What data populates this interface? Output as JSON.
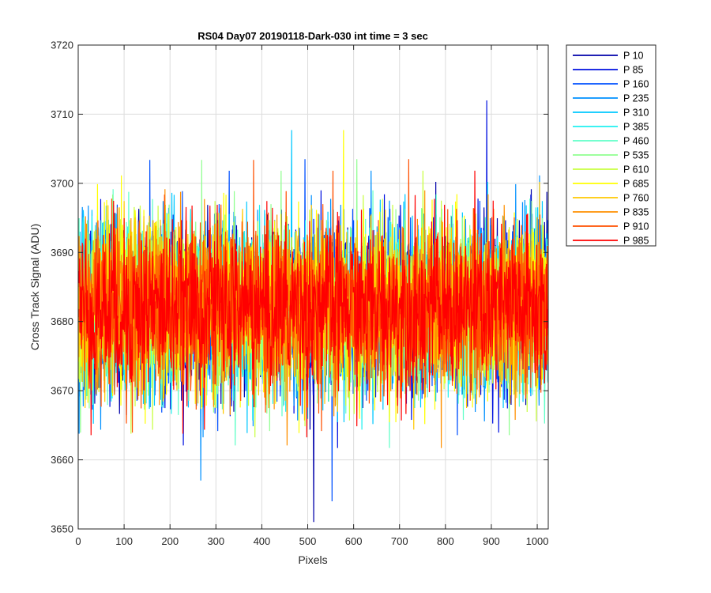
{
  "chart_data": {
    "type": "line",
    "title": "RS04 Day07 20190118-Dark-030 int time = 3 sec",
    "xlabel": "Pixels",
    "ylabel": "Cross Track Signal (ADU)",
    "xlim": [
      0,
      1024
    ],
    "ylim": [
      3650,
      3720
    ],
    "x_ticks": [
      "0",
      "100",
      "200",
      "300",
      "400",
      "500",
      "600",
      "700",
      "800",
      "900",
      "1000"
    ],
    "y_ticks": [
      "3650",
      "3660",
      "3670",
      "3680",
      "3690",
      "3700",
      "3710",
      "3720"
    ],
    "grid": true,
    "legend_position": "outside-right-top",
    "data_summary": {
      "x_range": [
        1,
        1024
      ],
      "mean": 3682,
      "typical_low": 3670,
      "typical_high": 3694,
      "min": 3651,
      "max": 3712
    },
    "series": [
      {
        "name": "P 10",
        "color": "#0000aa"
      },
      {
        "name": "P 85",
        "color": "#0010e0"
      },
      {
        "name": "P 160",
        "color": "#0050ff"
      },
      {
        "name": "P 235",
        "color": "#0090ff"
      },
      {
        "name": "P 310",
        "color": "#00c8ff"
      },
      {
        "name": "P 385",
        "color": "#20f0f0"
      },
      {
        "name": "P 460",
        "color": "#60ffc8"
      },
      {
        "name": "P 535",
        "color": "#90ff90"
      },
      {
        "name": "P 610",
        "color": "#c8ff40"
      },
      {
        "name": "P 685",
        "color": "#ffff00"
      },
      {
        "name": "P 760",
        "color": "#ffc800"
      },
      {
        "name": "P 835",
        "color": "#ff9000"
      },
      {
        "name": "P 910",
        "color": "#ff5000"
      },
      {
        "name": "P 985",
        "color": "#ff0000"
      }
    ],
    "extremes": [
      {
        "series": "P 85",
        "x": 890,
        "y": 3712
      },
      {
        "series": "P 10",
        "x": 513,
        "y": 3651
      },
      {
        "series": "P 160",
        "x": 553,
        "y": 3654
      },
      {
        "series": "P 235",
        "x": 267,
        "y": 3657
      }
    ]
  }
}
